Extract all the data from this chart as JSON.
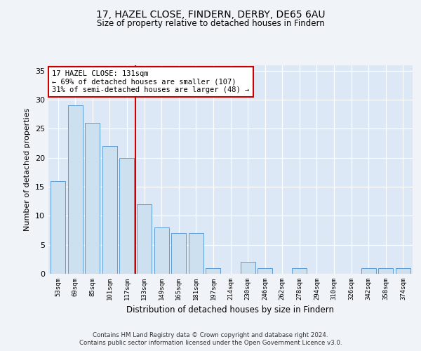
{
  "title1": "17, HAZEL CLOSE, FINDERN, DERBY, DE65 6AU",
  "title2": "Size of property relative to detached houses in Findern",
  "xlabel": "Distribution of detached houses by size in Findern",
  "ylabel": "Number of detached properties",
  "categories": [
    "53sqm",
    "69sqm",
    "85sqm",
    "101sqm",
    "117sqm",
    "133sqm",
    "149sqm",
    "165sqm",
    "181sqm",
    "197sqm",
    "214sqm",
    "230sqm",
    "246sqm",
    "262sqm",
    "278sqm",
    "294sqm",
    "310sqm",
    "326sqm",
    "342sqm",
    "358sqm",
    "374sqm"
  ],
  "values": [
    16,
    29,
    26,
    22,
    20,
    12,
    8,
    7,
    7,
    1,
    0,
    2,
    1,
    0,
    1,
    0,
    0,
    0,
    1,
    1,
    1
  ],
  "bar_color": "#cce0f0",
  "bar_edge_color": "#5b9bd5",
  "vline_color": "#cc0000",
  "annotation_text": "17 HAZEL CLOSE: 131sqm\n← 69% of detached houses are smaller (107)\n31% of semi-detached houses are larger (48) →",
  "annotation_box_color": "#ffffff",
  "annotation_box_edge_color": "#cc0000",
  "ylim": [
    0,
    36
  ],
  "yticks": [
    0,
    5,
    10,
    15,
    20,
    25,
    30,
    35
  ],
  "footer1": "Contains HM Land Registry data © Crown copyright and database right 2024.",
  "footer2": "Contains public sector information licensed under the Open Government Licence v3.0.",
  "fig_bg_color": "#f0f4f8",
  "plot_bg_color": "#dce8f5"
}
